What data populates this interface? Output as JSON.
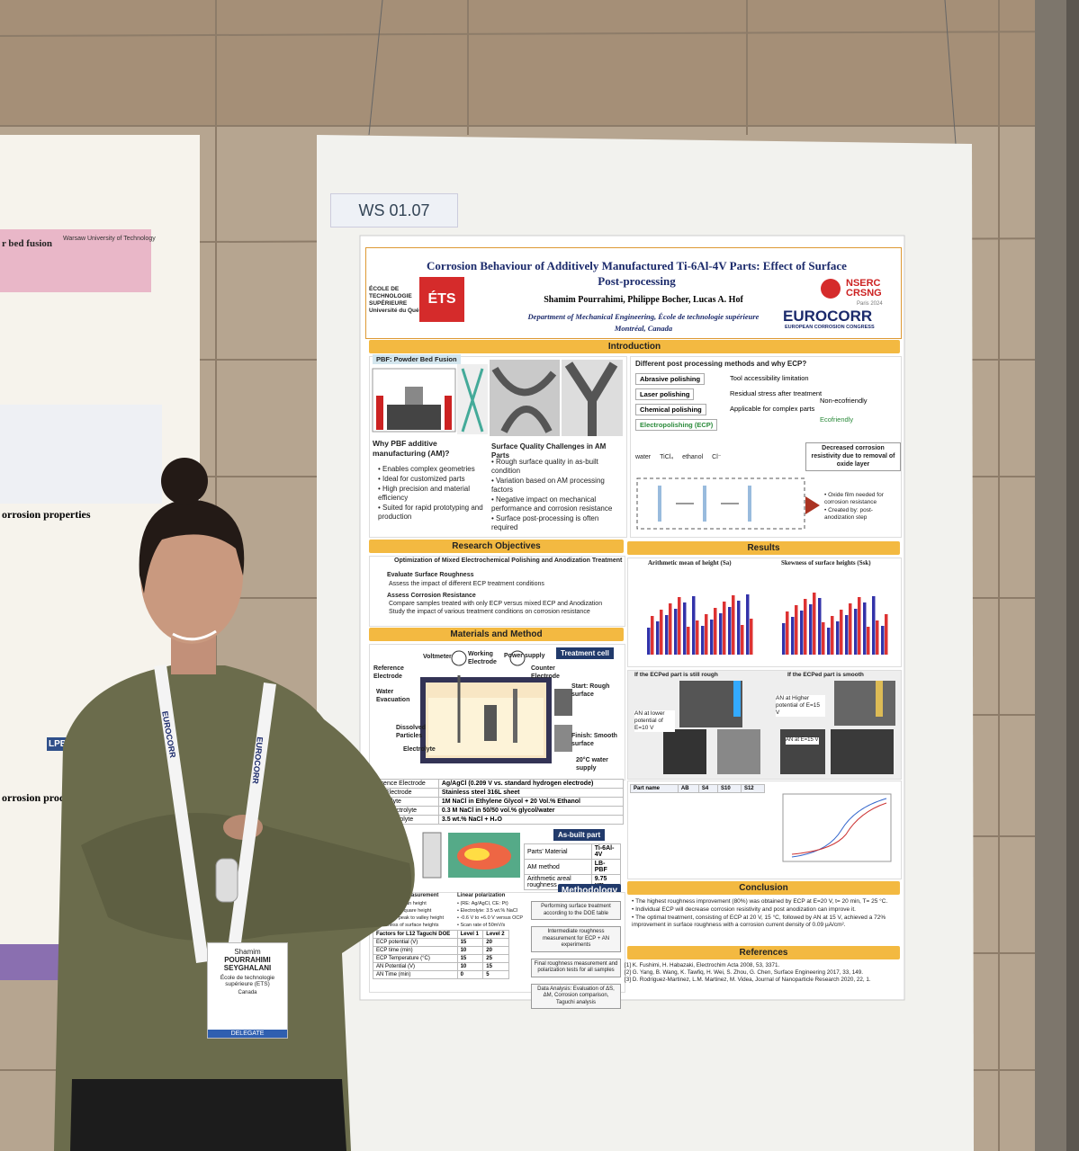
{
  "booth_label": "WS 01.07",
  "left_poster": {
    "title": "r bed fusion",
    "institution": "Warsaw University of Technology",
    "section_1": "orrosion properties",
    "section_2": "orrosion prod",
    "box": "LPB"
  },
  "header": {
    "title": "Corrosion Behaviour of Additively Manufactured Ti-6Al-4V Parts: Effect of Surface Post-processing",
    "authors": "Shamim Pourrahimi, Philippe Bocher, Lucas A. Hof",
    "affiliation": "Department of Mechanical Engineering, École de technologie supérieure",
    "city": "Montréal, Canada",
    "logo_left": [
      "ÉCOLE DE",
      "TECHNOLOGIE",
      "SUPÉRIEURE",
      "Université du Québec"
    ],
    "logo_ets": "ÉTS",
    "logo_nserc": [
      "NSERC",
      "CRSNG"
    ],
    "logo_eurocorr": "EUROCORR",
    "logo_eurocorr_sub": "EUROPEAN CORROSION CONGRESS",
    "logo_eurocorr_city": "Paris 2024"
  },
  "introduction": {
    "title": "Introduction",
    "pbf_label": "PBF: Powder Bed Fusion",
    "why_title": "Why PBF additive manufacturing (AM)?",
    "why_items": [
      "Enables complex geometries",
      "Ideal for customized parts",
      "High precision and material efficiency",
      "Suited for rapid prototyping and production"
    ],
    "quality_title": "Surface Quality Challenges in AM Parts",
    "quality_items": [
      "Rough surface quality in as-built condition",
      "Variation based on AM processing factors",
      "Negative impact on mechanical performance and corrosion resistance",
      "Surface post-processing is often required"
    ],
    "ecp_title": "Different post processing methods and why ECP?",
    "methods": [
      {
        "name": "Abrasive polishing",
        "note": "Tool accessibility limitation"
      },
      {
        "name": "Laser polishing",
        "note": "Residual stress after treatment"
      },
      {
        "name": "Chemical polishing",
        "note": "Applicable for complex parts",
        "extra": "Non-ecofriendly"
      },
      {
        "name": "Electropolishing (ECP)",
        "note": "Ecofriendly"
      }
    ],
    "legend": [
      "water",
      "TiCl₄",
      "ethanol",
      "Cl⁻"
    ],
    "decreased": "Decreased corrosion resistivity due to removal of oxide layer",
    "oxide_items": [
      "Oxide film needed for corrosion resistance",
      "Created by: post-anodization step"
    ]
  },
  "objectives": {
    "title": "Research Objectives",
    "subtitle": "Optimization of Mixed Electrochemical Polishing and Anodization Treatment",
    "groups": [
      {
        "name": "Evaluate Surface Roughness",
        "items": [
          "Assess the impact of different ECP treatment conditions"
        ]
      },
      {
        "name": "Assess Corrosion Resistance",
        "items": [
          "Compare samples treated with only ECP versus mixed ECP and Anodization",
          "Study the impact of various treatment conditions on corrosion resistance"
        ]
      }
    ]
  },
  "materials": {
    "title": "Materials and Method",
    "cell_title": "Treatment cell",
    "cell_labels": [
      "Voltmeter",
      "Power supply",
      "Working Electrode",
      "Counter Electrode",
      "Reference Electrode",
      "Water Evacuation",
      "Dissolved Particles",
      "Electrolyte",
      "Start: Rough surface",
      "Finish: Smooth surface",
      "20°C water supply"
    ],
    "table": [
      [
        "eference Electrode",
        "Ag/AgCl (0.209 V vs. standard hydrogen electrode)"
      ],
      [
        "nter Electrode",
        "Stainless steel 316L sheet"
      ],
      [
        "electrolyte",
        "1M NaCl in Ethylene Glycol + 20 Vol.% Ethanol"
      ],
      [
        "ation electrolyte",
        "0.3 M NaCl in 50/50 vol.% glycol/water"
      ],
      [
        "test electrolyte",
        "3.5 wt.% NaCl + H₂O"
      ]
    ],
    "asbuilt_title": "As-built part",
    "asbuilt": [
      [
        "Parts' Material",
        "Ti-6Al-4V"
      ],
      [
        "AM method",
        "LB-PBF"
      ],
      [
        "Arithmetic areal roughness",
        "9.75 µm"
      ]
    ]
  },
  "methodology": {
    "title": "Methodology",
    "roughness": "Roughness measurement",
    "polarization": "Linear polarization",
    "params": [
      "Arithmetic mean height",
      "Root mean square height",
      "Maximum peak to valley height",
      "Skewness of surface heights"
    ],
    "pol_params": [
      "(RE: Ag/AgCl, CE: Pt)",
      "Electrolyte: 3.5 wt.% NaCl",
      "-0.6 V to +6.0 V versus OCP",
      "Scan rate of 50mV/s"
    ],
    "doe_header": [
      "Factors for L12 Taguchi DOE",
      "Level 1",
      "Level 2"
    ],
    "doe_rows": [
      [
        "ECP potential (V)",
        "15",
        "20"
      ],
      [
        "ECP time (min)",
        "10",
        "20"
      ],
      [
        "ECP Temperature (°C)",
        "15",
        "25"
      ],
      [
        "AN Potential (V)",
        "10",
        "15"
      ],
      [
        "AN Time (min)",
        "0",
        "5"
      ]
    ],
    "steps": [
      "Performing surface treatment according to the DOE table",
      "Intermediate roughness measurement for ECP + AN experiments",
      "Final roughness measurement and polarization tests for all samples",
      "Data Analysis: Evaluation of ΔS, ΔM, Corrosion comparison, Taguchi analysis"
    ]
  },
  "results": {
    "title": "Results",
    "chart_1": "Arithmetic mean of height (Sa)",
    "chart_2": "Skewness of surface heights (Ssk)",
    "rough_case": "If the ECPed part is still rough",
    "smooth_case": "If the ECPed part is smooth",
    "an_low": "AN at lower potential of E=10 V",
    "an_high": "AN at Higher potential of E=15 V",
    "an_mid": "AN at E=15 V",
    "table_header": [
      "Part name",
      "AB",
      "S4",
      "S10",
      "S12"
    ]
  },
  "conclusion": {
    "title": "Conclusion",
    "items": [
      "The highest roughness improvement (80%) was obtained by ECP at E=20 V, t= 20 min, T= 25 °C.",
      "Individual ECP will decrease corrosion resistivity and post anodization can improve it.",
      "The optimal treatment, consisting of ECP at 20 V, 15 °C, followed by AN at 15 V, achieved a 72% improvement in surface roughness with a corrosion current density of 0.09 µA/cm²."
    ]
  },
  "references": {
    "title": "References",
    "items": [
      "[1] K. Fushimi, H. Habazaki, Electrochim Acta 2008, 53, 3371.",
      "[2] G. Yang, B. Wang, K. Tawfiq, H. Wei, S. Zhou, G. Chen, Surface Engineering 2017, 33, 149.",
      "[3] D. Rodriguez-Martinez, L.M. Martinez, M. Videa, Journal of Nanoparticle Research 2020, 22, 1."
    ]
  },
  "badge": {
    "first": "Shamim",
    "last_1": "POURRAHIMI",
    "last_2": "SEYGHALANI",
    "org": "École de technologie supérieure (ETS)",
    "country": "Canada",
    "role": "DELEGATE",
    "lanyard": "EUROCORR"
  }
}
